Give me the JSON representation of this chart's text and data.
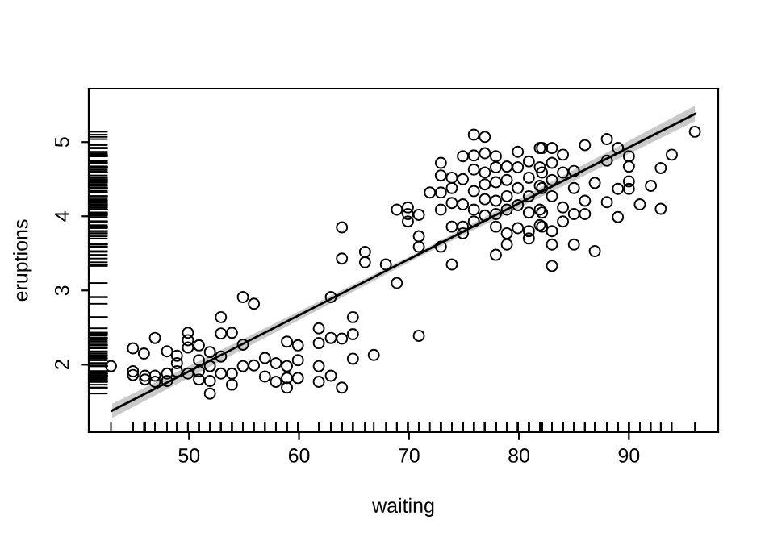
{
  "chart_data": {
    "type": "scatter",
    "xlabel": "waiting",
    "ylabel": "eruptions",
    "xlim": [
      40.88,
      98.12
    ],
    "ylim": [
      1.09,
      5.72
    ],
    "xticks": [
      50,
      60,
      70,
      80,
      90
    ],
    "yticks": [
      2,
      3,
      4,
      5
    ],
    "grid": false,
    "legend": false,
    "marker": "circle",
    "series": [
      {
        "color": "#000000",
        "x": [
          42.9,
          44.9,
          44.9,
          44.9,
          45.9,
          46.0,
          46.0,
          46.9,
          46.9,
          46.9,
          48.0,
          48.0,
          48.0,
          48.9,
          48.9,
          48.9,
          49.9,
          49.9,
          49.9,
          49.9,
          50.9,
          50.9,
          50.9,
          50.9,
          51.9,
          51.9,
          51.9,
          51.9,
          52.9,
          52.9,
          52.9,
          52.9,
          53.9,
          53.9,
          53.9,
          54.9,
          54.9,
          54.9,
          55.9,
          55.9,
          56.9,
          56.9,
          57.9,
          57.9,
          58.9,
          58.9,
          58.9,
          58.9,
          59.9,
          59.9,
          59.9,
          61.8,
          61.8,
          61.8,
          61.8,
          62.9,
          62.9,
          62.9,
          63.9,
          63.9,
          63.9,
          63.9,
          64.9,
          64.9,
          64.9,
          66.0,
          66.0,
          66.8,
          67.9,
          68.9,
          68.9,
          69.9,
          69.9,
          69.9,
          70.9,
          70.9,
          70.9,
          70.9,
          71.9,
          72.9,
          72.9,
          72.9,
          72.9,
          72.9,
          73.9,
          73.9,
          73.9,
          73.9,
          73.9,
          74.9,
          74.9,
          74.9,
          74.9,
          74.9,
          75.9,
          75.9,
          75.9,
          75.9,
          75.9,
          75.9,
          76.9,
          76.9,
          76.9,
          76.9,
          76.9,
          76.9,
          77.9,
          77.9,
          77.9,
          77.9,
          77.9,
          77.9,
          77.9,
          78.9,
          78.9,
          78.9,
          78.9,
          78.9,
          78.9,
          79.9,
          79.9,
          79.9,
          79.9,
          79.9,
          80.9,
          80.9,
          80.9,
          80.9,
          80.9,
          80.9,
          81.9,
          81.9,
          81.9,
          81.9,
          81.9,
          82.1,
          82.1,
          82.1,
          82.1,
          82.1,
          83.0,
          83.0,
          83.0,
          83.0,
          83.0,
          83.0,
          83.0,
          84.0,
          84.0,
          84.0,
          84.0,
          85.0,
          85.0,
          85.0,
          85.0,
          86.0,
          86.0,
          86.0,
          86.9,
          86.9,
          88.0,
          88.0,
          88.0,
          89.0,
          89.0,
          89.0,
          90.0,
          90.0,
          90.0,
          90.0,
          91.0,
          92.0,
          92.9,
          92.9,
          93.9,
          96.0
        ],
        "values": [
          1.98,
          2.22,
          1.91,
          1.86,
          2.15,
          1.85,
          1.8,
          2.36,
          1.85,
          1.77,
          2.18,
          1.88,
          1.78,
          2.12,
          2.02,
          1.91,
          2.43,
          2.33,
          2.23,
          1.88,
          2.26,
          2.06,
          1.91,
          1.8,
          2.17,
          1.98,
          1.78,
          1.61,
          2.64,
          2.42,
          2.11,
          1.88,
          2.43,
          1.88,
          1.73,
          2.91,
          2.27,
          1.98,
          2.82,
          1.99,
          2.09,
          1.84,
          2.02,
          1.77,
          2.31,
          1.98,
          1.82,
          1.69,
          2.26,
          2.06,
          1.82,
          2.49,
          2.29,
          1.98,
          1.77,
          2.91,
          2.36,
          1.85,
          3.85,
          3.43,
          2.35,
          1.69,
          2.64,
          2.41,
          2.08,
          3.52,
          3.38,
          2.13,
          3.35,
          4.09,
          3.1,
          4.12,
          4.03,
          3.93,
          4.02,
          3.73,
          3.59,
          2.39,
          4.32,
          4.72,
          4.55,
          4.32,
          4.09,
          3.59,
          4.52,
          4.38,
          4.18,
          3.86,
          3.35,
          4.81,
          4.5,
          4.16,
          3.86,
          3.77,
          5.1,
          4.82,
          4.63,
          4.34,
          4.09,
          3.93,
          5.07,
          4.85,
          4.59,
          4.43,
          4.23,
          4.01,
          4.81,
          4.66,
          4.46,
          4.21,
          4.03,
          3.86,
          3.48,
          4.67,
          4.49,
          4.27,
          4.09,
          3.77,
          3.62,
          4.87,
          4.66,
          4.38,
          4.15,
          3.84,
          4.74,
          4.52,
          4.27,
          4.05,
          3.8,
          3.7,
          4.92,
          4.66,
          4.41,
          4.09,
          3.88,
          4.92,
          4.59,
          4.38,
          4.05,
          3.86,
          4.92,
          4.72,
          4.49,
          4.27,
          3.8,
          3.62,
          3.33,
          4.83,
          4.59,
          4.12,
          3.93,
          4.61,
          4.38,
          4.03,
          3.62,
          4.96,
          4.21,
          4.03,
          4.45,
          3.53,
          5.04,
          4.75,
          4.19,
          4.92,
          4.37,
          3.99,
          4.81,
          4.67,
          4.47,
          4.37,
          4.16,
          4.41,
          4.65,
          4.1,
          4.83,
          5.14
        ]
      },
      {
        "type": "line",
        "color": "#000000",
        "marker": "none",
        "line_style": "solid",
        "x": [
          43,
          70.9,
          96
        ],
        "values": [
          1.38,
          3.49,
          5.38
        ],
        "lower": [
          1.28,
          3.45,
          5.28
        ],
        "upper": [
          1.47,
          3.52,
          5.49
        ]
      }
    ]
  }
}
